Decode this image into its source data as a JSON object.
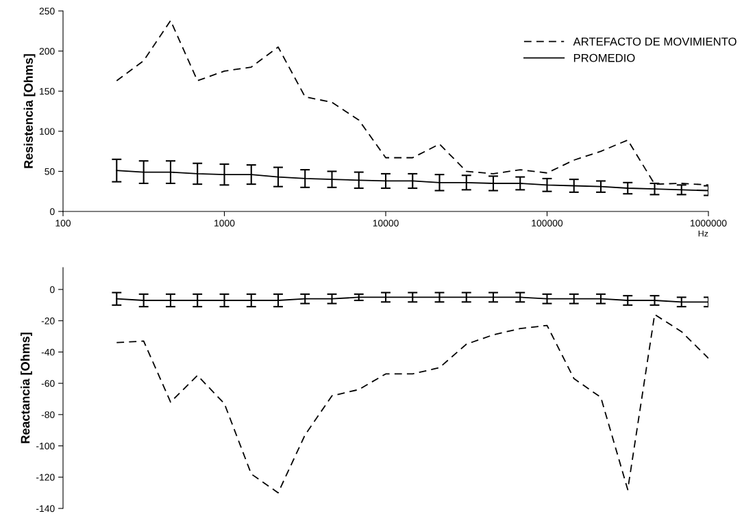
{
  "chart_data": [
    {
      "type": "line",
      "xlabel": "Hz",
      "ylabel": "Resistencia [Ohms]",
      "log": "x",
      "xlim": [
        100,
        1000000
      ],
      "xticks": [
        100,
        1000,
        10000,
        100000,
        1000000
      ],
      "ylim": [
        0,
        250
      ],
      "yticks": [
        0,
        50,
        100,
        150,
        200,
        250
      ],
      "grid": false,
      "legend": "top right",
      "marker": "none",
      "x": [
        215,
        316,
        464,
        681,
        1000,
        1468,
        2154,
        3162,
        4642,
        6813,
        10000,
        14678,
        21544,
        31623,
        46416,
        68129,
        100000,
        146780,
        215443,
        316228,
        464159,
        681292,
        1000000
      ],
      "series": [
        {
          "name": "ARTEFACTO DE MOVIMIENTO",
          "color": "#000000",
          "line_style": "dashed",
          "values": [
            163,
            188,
            238,
            163,
            175,
            180,
            205,
            143,
            136,
            114,
            67,
            67,
            84,
            50,
            47,
            52,
            48,
            64,
            75,
            89,
            34,
            35,
            33
          ]
        },
        {
          "name": "PROMEDIO",
          "color": "#000000",
          "line_style": "solid",
          "values": [
            51,
            49,
            49,
            47,
            46,
            46,
            43,
            41,
            40,
            39,
            38,
            38,
            36,
            36,
            35,
            35,
            33,
            32,
            31,
            29,
            28,
            27,
            26
          ],
          "errors": [
            14,
            14,
            14,
            13,
            13,
            12,
            12,
            11,
            10,
            10,
            9,
            9,
            10,
            9,
            9,
            8,
            8,
            8,
            7,
            7,
            7,
            6,
            6
          ]
        }
      ]
    },
    {
      "type": "line",
      "ylabel": "Reactancia [Ohms]",
      "log": "x",
      "xlim": [
        100,
        1000000
      ],
      "ylim": [
        -140,
        14
      ],
      "yticks": [
        {
          "value": 0,
          "label": "0"
        },
        {
          "value": -20,
          "label": "-20"
        },
        {
          "value": -40,
          "label": "-40"
        },
        {
          "value": -60,
          "label": "-60"
        },
        {
          "value": -80,
          "label": "-80"
        },
        {
          "value": -100,
          "label": "-100"
        },
        {
          "value": -120,
          "label": "-120"
        },
        {
          "value": -140,
          "label": "-140"
        }
      ],
      "tick_labels": "y",
      "grid": false,
      "legend": false,
      "marker": "none",
      "x": [
        215,
        316,
        464,
        681,
        1000,
        1468,
        2154,
        3162,
        4642,
        6813,
        10000,
        14678,
        21544,
        31623,
        46416,
        68129,
        100000,
        146780,
        215443,
        316228,
        464159,
        681292,
        1000000
      ],
      "series": [
        {
          "color": "#000000",
          "line_style": "dashed",
          "values": [
            -34,
            -33,
            -72,
            -55,
            -73,
            -118,
            -130,
            -93,
            -68,
            -64,
            -54,
            -54,
            -50,
            -35,
            -29,
            -25,
            -23,
            -57,
            -69,
            -128,
            -16,
            -27,
            -44
          ]
        },
        {
          "color": "#000000",
          "line_style": "solid",
          "values": [
            -6,
            -7,
            -7,
            -7,
            -7,
            -7,
            -7,
            -6,
            -6,
            -5,
            -5,
            -5,
            -5,
            -5,
            -5,
            -5,
            -6,
            -6,
            -6,
            -7,
            -7,
            -8,
            -8
          ],
          "errors": [
            4,
            4,
            4,
            4,
            4,
            4,
            4,
            3,
            3,
            2,
            3,
            3,
            3,
            3,
            3,
            3,
            3,
            3,
            3,
            3,
            3,
            3,
            3
          ]
        }
      ]
    }
  ]
}
